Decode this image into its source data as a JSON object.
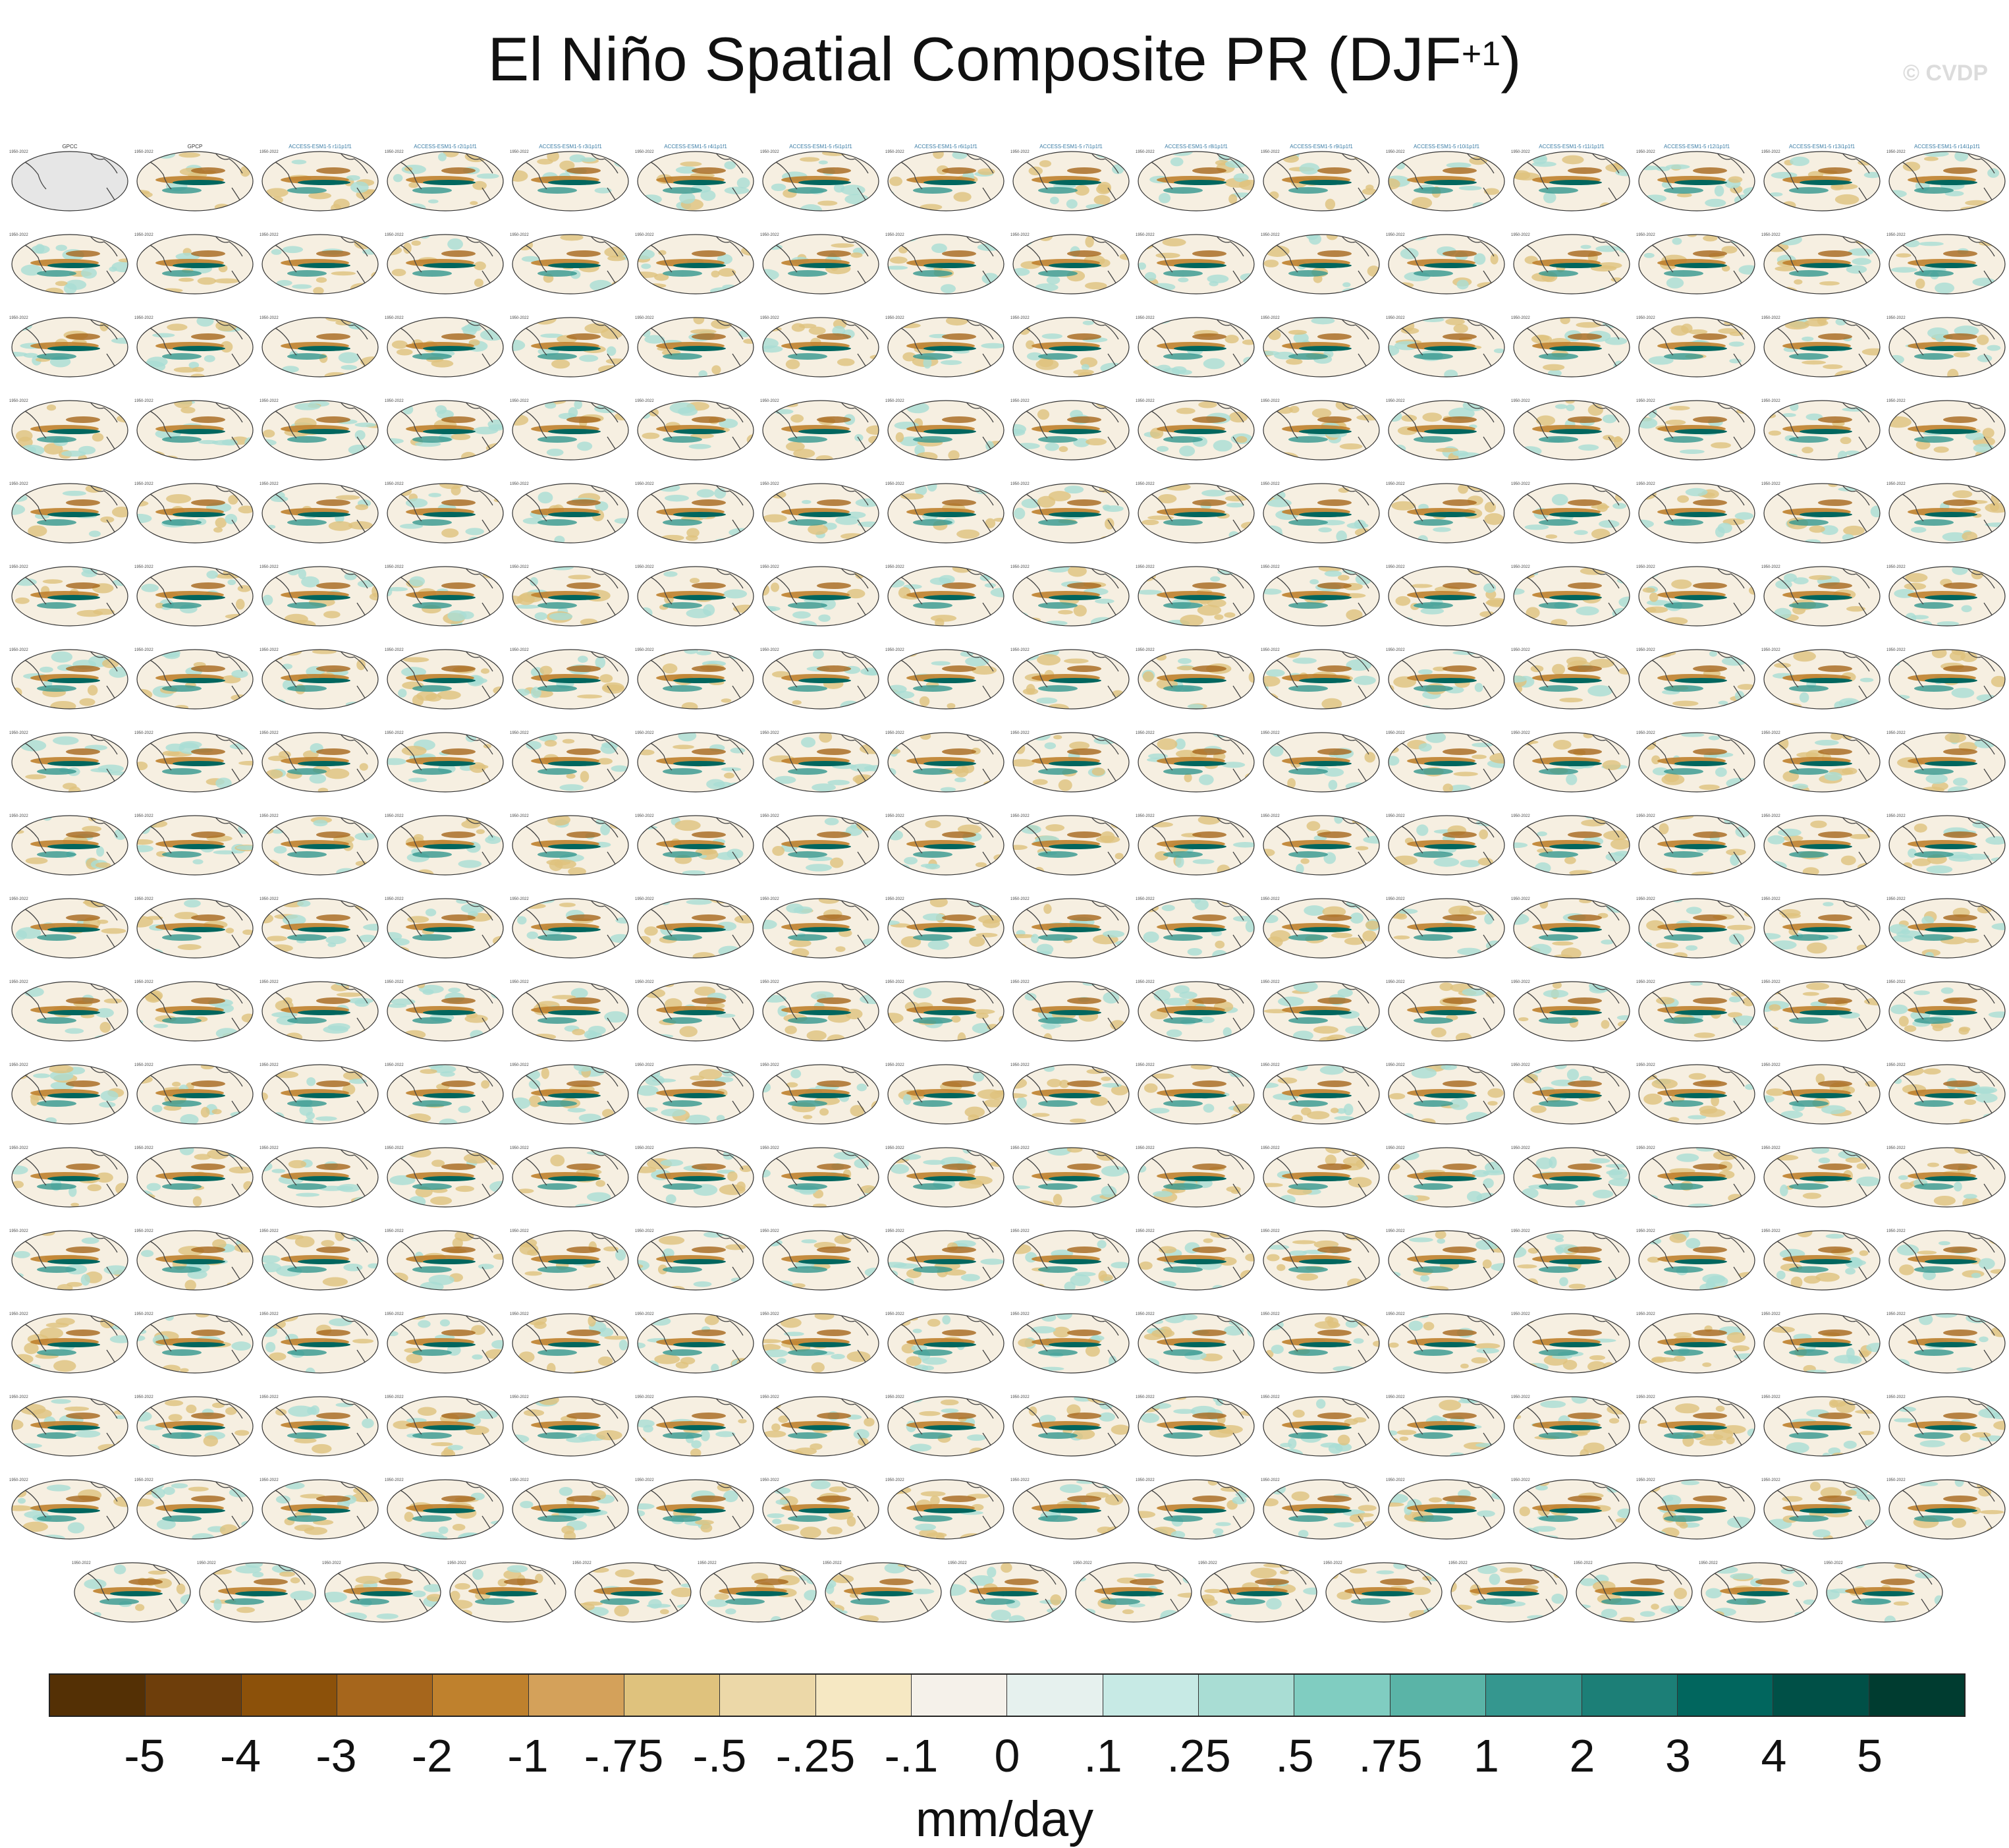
{
  "title": {
    "main": "El Niño Spatial Composite PR (DJF",
    "superscript": "+1",
    "close": ")"
  },
  "watermark": "© CVDP",
  "chart_data": {
    "type": "heatmap",
    "description_panels": {
      "rows_full": 17,
      "cols_full": 16,
      "last_row_count": 15,
      "panel_titles_first_row": [
        "GPCC",
        "GPCP",
        "ACCESS-ESM1-5 r1i1p1f1",
        "ACCESS-ESM1-5 r2i1p1f1",
        "ACCESS-ESM1-5 r3i1p1f1",
        "ACCESS-ESM1-5 r4i1p1f1",
        "ACCESS-ESM1-5 r5i1p1f1",
        "ACCESS-ESM1-5 r6i1p1f1",
        "ACCESS-ESM1-5 r7i1p1f1",
        "ACCESS-ESM1-5 r8i1p1f1",
        "ACCESS-ESM1-5 r9i1p1f1",
        "ACCESS-ESM1-5 r10i1p1f1",
        "ACCESS-ESM1-5 r11i1p1f1",
        "ACCESS-ESM1-5 r12i1p1f1",
        "ACCESS-ESM1-5 r13i1p1f1",
        "ACCESS-ESM1-5 r14i1p1f1"
      ],
      "years_label": "1950-2022"
    },
    "colorbar": {
      "labels": [
        "-5",
        "-4",
        "-3",
        "-2",
        "-1",
        "-.75",
        "-.5",
        "-.25",
        "-.1",
        "0",
        ".1",
        ".25",
        ".5",
        ".75",
        "1",
        "2",
        "3",
        "4",
        "5"
      ],
      "colors": [
        "#543005",
        "#6e3e0b",
        "#8c510a",
        "#a6661c",
        "#bf812d",
        "#d4a15a",
        "#dfc27d",
        "#ecd8a8",
        "#f6e8c3",
        "#f5f1ea",
        "#e6f1ee",
        "#c7eae5",
        "#a9ddd4",
        "#80cdc1",
        "#5ab4a7",
        "#35978f",
        "#1c7f77",
        "#01665e",
        "#005047",
        "#003c30"
      ],
      "units": "mm/day"
    }
  }
}
